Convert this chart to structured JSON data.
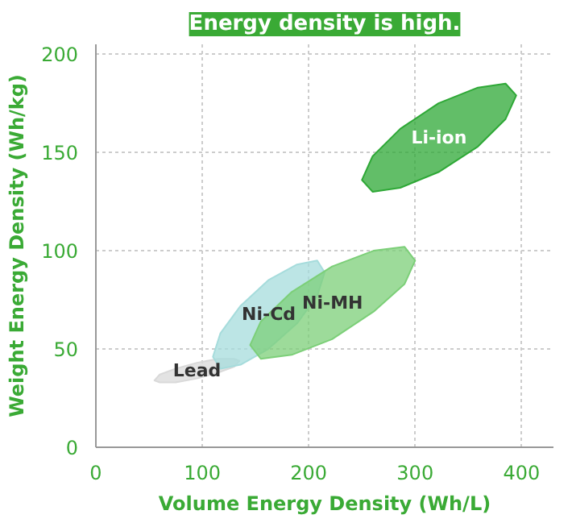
{
  "chart_data": {
    "type": "area",
    "title": "Energy density is high.",
    "xlabel": "Volume Energy Density (Wh/L)",
    "ylabel": "Weight Energy Density (Wh/kg)",
    "xlim": [
      0,
      430
    ],
    "ylim": [
      0,
      205
    ],
    "xticks": [
      0,
      100,
      200,
      300,
      400
    ],
    "yticks": [
      0,
      50,
      100,
      150,
      200
    ],
    "grid": true,
    "series": [
      {
        "name": "Lead",
        "color": "#d9d9d9",
        "x": [
          135,
          130,
          115,
          95,
          75,
          60,
          55,
          60,
          75,
          95,
          115,
          130
        ],
        "values": [
          44,
          45,
          45,
          43,
          40,
          37,
          34,
          33,
          33,
          35,
          38,
          41
        ]
      },
      {
        "name": "Ni-Cd",
        "color": "#a6dcdc",
        "x": [
          215,
          208,
          189,
          162,
          136,
          117,
          110,
          117,
          136,
          162,
          189,
          208
        ],
        "values": [
          89,
          95,
          93,
          85,
          72,
          58,
          46,
          40,
          42,
          50,
          63,
          77
        ]
      },
      {
        "name": "Ni-MH",
        "color": "#7ccf78",
        "x": [
          300,
          290,
          261,
          222,
          184,
          155,
          145,
          155,
          184,
          222,
          261,
          290
        ],
        "values": [
          95,
          102,
          100,
          92,
          79,
          64,
          52,
          45,
          47,
          55,
          69,
          83
        ]
      },
      {
        "name": "Li-ion",
        "color": "#2ea836",
        "x": [
          395,
          385,
          359,
          322,
          286,
          260,
          250,
          260,
          286,
          322,
          359,
          385
        ],
        "values": [
          179,
          185,
          183,
          175,
          162,
          148,
          136,
          130,
          132,
          140,
          153,
          167
        ]
      }
    ]
  }
}
